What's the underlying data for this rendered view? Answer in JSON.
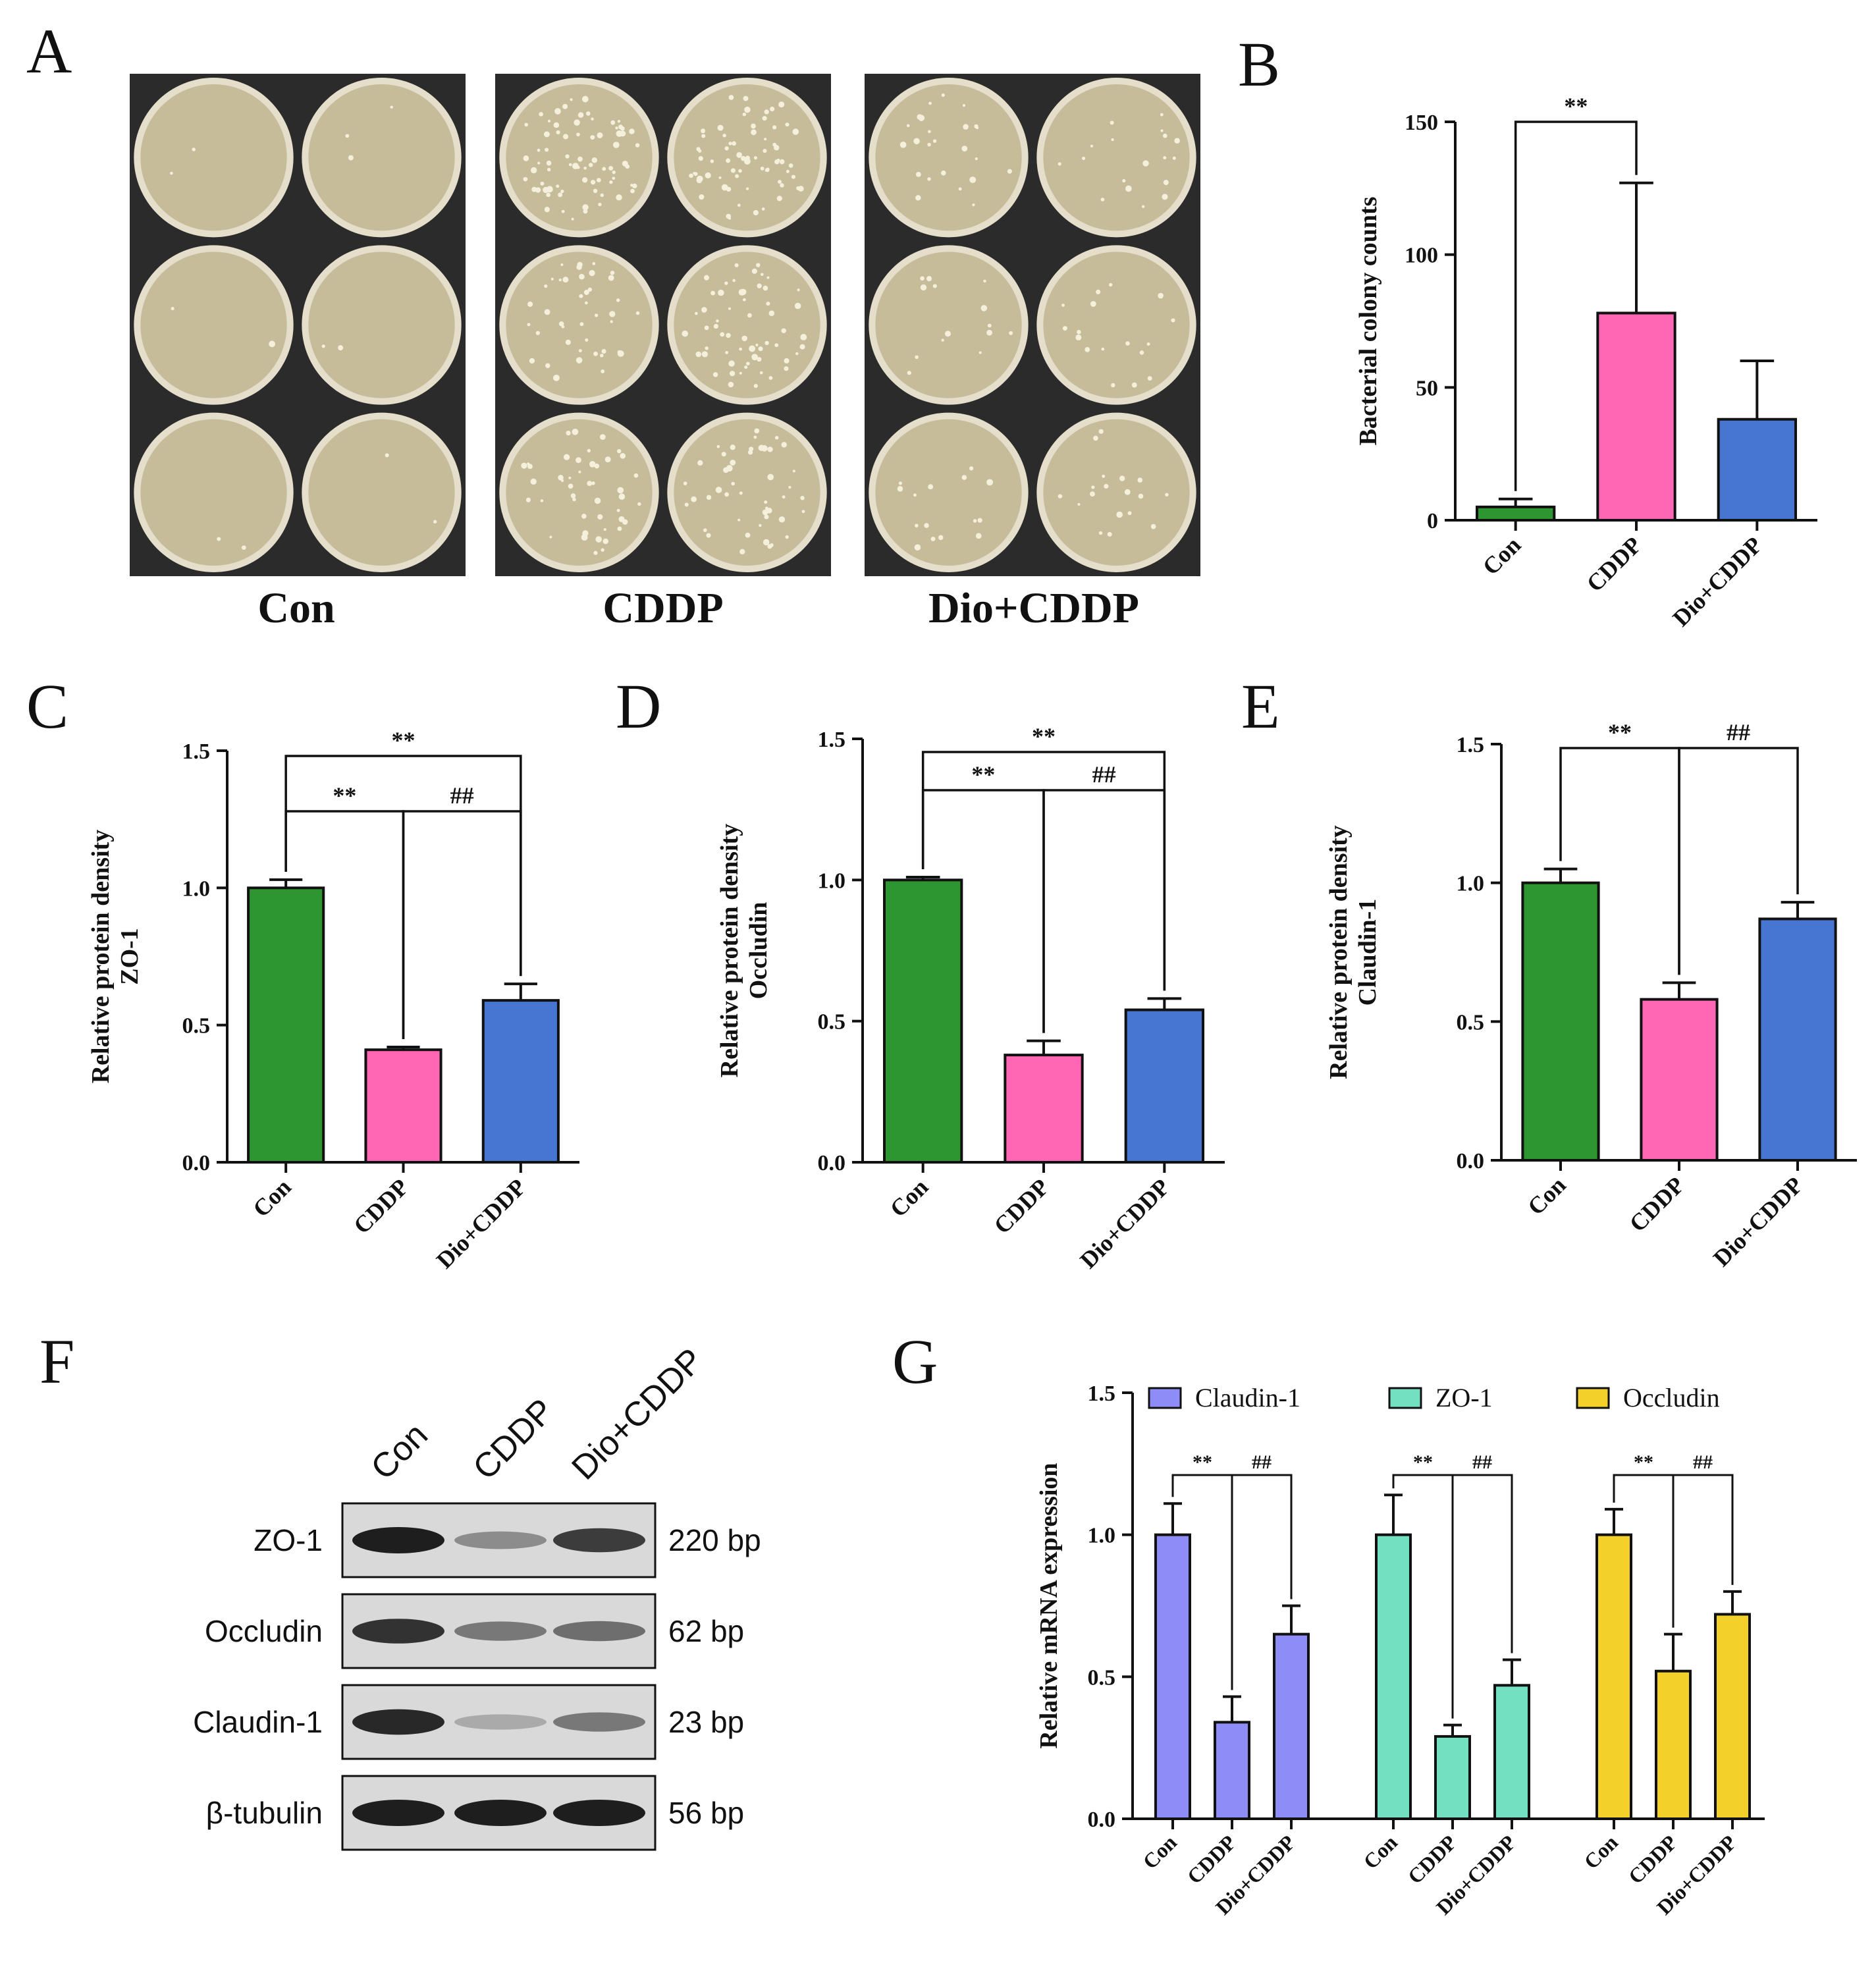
{
  "panel_letters": [
    "A",
    "B",
    "C",
    "D",
    "E",
    "F",
    "G"
  ],
  "colors": {
    "green": "#2e9630",
    "pink": "#ff66b3",
    "blue": "#4676d2",
    "purple": "#8e8cf7",
    "teal": "#74e0c2",
    "yellow": "#f4d02a",
    "plate_bg": "#2b2b2b",
    "plate": "#c7bc9a",
    "plate_rim": "#e5decb"
  },
  "panel_a": {
    "groups": [
      "Con",
      "CDDP",
      "Dio+CDDP"
    ]
  },
  "chart_data": [
    {
      "panel": "B",
      "type": "bar",
      "categories": [
        "Con",
        "CDDP",
        "Dio+CDDP"
      ],
      "values": [
        5,
        78,
        38
      ],
      "errors": [
        3,
        49,
        22
      ],
      "ylabel": "Bacterial colony counts",
      "ylim": [
        0,
        150
      ],
      "yticks": [
        "0",
        "50",
        "100",
        "150"
      ],
      "significance": [
        {
          "from": 0,
          "to": 1,
          "label": "**"
        }
      ]
    },
    {
      "panel": "C",
      "type": "bar",
      "categories": [
        "Con",
        "CDDP",
        "Dio+CDDP"
      ],
      "values": [
        1.0,
        0.41,
        0.59
      ],
      "errors": [
        0.03,
        0.01,
        0.06
      ],
      "ylabel": [
        "Relative protein density",
        "ZO-1"
      ],
      "ylim": [
        0,
        1.5
      ],
      "yticks": [
        "0.0",
        "0.5",
        "1.0",
        "1.5"
      ],
      "significance": [
        {
          "from": 0,
          "to": 1,
          "label": "**"
        },
        {
          "from": 1,
          "to": 2,
          "label": "##"
        },
        {
          "from": 0,
          "to": 2,
          "label": "**"
        }
      ]
    },
    {
      "panel": "D",
      "type": "bar",
      "categories": [
        "Con",
        "CDDP",
        "Dio+CDDP"
      ],
      "values": [
        1.0,
        0.38,
        0.54
      ],
      "errors": [
        0.01,
        0.05,
        0.04
      ],
      "ylabel": [
        "Relative protein density",
        "Occludin"
      ],
      "ylim": [
        0,
        1.5
      ],
      "yticks": [
        "0.0",
        "0.5",
        "1.0",
        "1.5"
      ],
      "significance": [
        {
          "from": 0,
          "to": 1,
          "label": "**"
        },
        {
          "from": 1,
          "to": 2,
          "label": "##"
        },
        {
          "from": 0,
          "to": 2,
          "label": "**"
        }
      ]
    },
    {
      "panel": "E",
      "type": "bar",
      "categories": [
        "Con",
        "CDDP",
        "Dio+CDDP"
      ],
      "values": [
        1.0,
        0.58,
        0.87
      ],
      "errors": [
        0.05,
        0.06,
        0.06
      ],
      "ylabel": [
        "Relative protein density",
        "Claudin-1"
      ],
      "ylim": [
        0,
        1.5
      ],
      "yticks": [
        "0.0",
        "0.5",
        "1.0",
        "1.5"
      ],
      "significance": [
        {
          "from": 0,
          "to": 1,
          "label": "**"
        },
        {
          "from": 1,
          "to": 2,
          "label": "##"
        }
      ]
    },
    {
      "panel": "G",
      "type": "bar",
      "categories": [
        "Con",
        "CDDP",
        "Dio+CDDP"
      ],
      "series": [
        {
          "name": "Claudin-1",
          "values": [
            1.0,
            0.34,
            0.65
          ],
          "errors": [
            0.11,
            0.09,
            0.1
          ]
        },
        {
          "name": "ZO-1",
          "values": [
            1.0,
            0.29,
            0.47
          ],
          "errors": [
            0.14,
            0.04,
            0.09
          ]
        },
        {
          "name": "Occludin",
          "values": [
            1.0,
            0.52,
            0.72
          ],
          "errors": [
            0.09,
            0.13,
            0.08
          ]
        }
      ],
      "ylabel": "Relative mRNA expression",
      "ylim": [
        0,
        1.5
      ],
      "yticks": [
        "0.0",
        "0.5",
        "1.0",
        "1.5"
      ],
      "legend": "top",
      "significance_labels": [
        "**",
        "##"
      ]
    }
  ],
  "western_blot": {
    "lanes": [
      "Con",
      "CDDP",
      "Dio+CDDP"
    ],
    "rows": [
      {
        "protein": "ZO-1",
        "size": "220 bp",
        "intensity": [
          1.0,
          0.45,
          0.85
        ]
      },
      {
        "protein": "Occludin",
        "size": "62 bp",
        "intensity": [
          0.9,
          0.55,
          0.6
        ]
      },
      {
        "protein": "Claudin-1",
        "size": "23 bp",
        "intensity": [
          0.95,
          0.3,
          0.55
        ]
      },
      {
        "protein": "β-tubulin",
        "size": "56 bp",
        "intensity": [
          1.0,
          1.0,
          1.0
        ]
      }
    ]
  }
}
